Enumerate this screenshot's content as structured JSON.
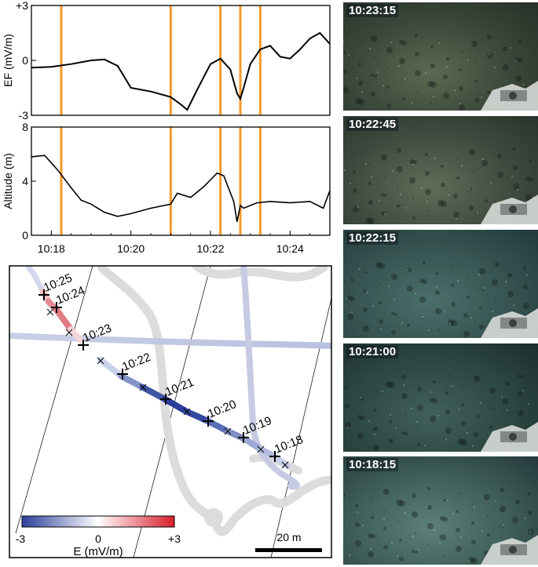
{
  "panels": {
    "ef": {
      "ylabel": "EF (mV/m)",
      "yticks": [
        "+3",
        "0",
        "-3"
      ]
    },
    "alt": {
      "ylabel": "Altitude (m)",
      "yticks": [
        "8",
        "4",
        "0"
      ]
    },
    "xticks": [
      "10:18",
      "10:20",
      "10:22",
      "10:24"
    ]
  },
  "chart_data": [
    {
      "type": "line",
      "title": "",
      "xlabel": "",
      "ylabel": "EF (mV/m)",
      "ylim": [
        -3,
        3
      ],
      "xlim": [
        "10:17:30",
        "10:25:00"
      ],
      "x": [
        "10:17:30",
        "10:18:00",
        "10:18:30",
        "10:19:00",
        "10:19:20",
        "10:19:40",
        "10:20:00",
        "10:20:30",
        "10:21:00",
        "10:21:15",
        "10:21:25",
        "10:21:40",
        "10:22:00",
        "10:22:15",
        "10:22:30",
        "10:22:40",
        "10:22:45",
        "10:22:50",
        "10:23:00",
        "10:23:15",
        "10:23:30",
        "10:23:45",
        "10:24:00",
        "10:24:15",
        "10:24:30",
        "10:24:45",
        "10:25:00"
      ],
      "y": [
        -0.4,
        -0.35,
        -0.2,
        0.0,
        0.05,
        -0.3,
        -1.5,
        -1.7,
        -2.0,
        -2.4,
        -2.7,
        -1.6,
        -0.2,
        0.1,
        -0.5,
        -1.8,
        -2.1,
        -1.5,
        -0.2,
        0.6,
        0.8,
        0.2,
        0.1,
        0.6,
        1.2,
        1.5,
        0.9
      ],
      "vertical_markers": [
        "10:18:15",
        "10:21:00",
        "10:22:15",
        "10:22:45",
        "10:23:15"
      ],
      "marker_color": "#f39a2b"
    },
    {
      "type": "line",
      "title": "",
      "xlabel": "",
      "ylabel": "Altitude (m)",
      "ylim": [
        0,
        8
      ],
      "xlim": [
        "10:17:30",
        "10:25:00"
      ],
      "x": [
        "10:17:30",
        "10:17:50",
        "10:18:10",
        "10:18:30",
        "10:18:45",
        "10:19:00",
        "10:19:20",
        "10:19:40",
        "10:20:00",
        "10:20:30",
        "10:21:00",
        "10:21:10",
        "10:21:30",
        "10:21:50",
        "10:22:10",
        "10:22:20",
        "10:22:35",
        "10:22:40",
        "10:22:45",
        "10:22:50",
        "10:23:10",
        "10:23:30",
        "10:24:00",
        "10:24:30",
        "10:24:50",
        "10:25:00"
      ],
      "y": [
        5.8,
        5.9,
        4.8,
        3.5,
        2.6,
        2.3,
        1.7,
        1.4,
        1.6,
        2.0,
        2.3,
        3.1,
        2.8,
        3.6,
        4.6,
        4.4,
        2.5,
        1.0,
        2.2,
        2.0,
        2.4,
        2.5,
        2.4,
        2.5,
        2.0,
        3.3
      ],
      "vertical_markers": [
        "10:18:15",
        "10:21:00",
        "10:22:15",
        "10:22:45",
        "10:23:15"
      ],
      "marker_color": "#f39a2b"
    }
  ],
  "map": {
    "time_labels": [
      "10:25",
      "10:24",
      "10:23",
      "10:22",
      "10:21",
      "10:20",
      "10:19",
      "10:18"
    ],
    "colorbar": {
      "min_label": "-3",
      "mid_label": "0",
      "max_label": "+3",
      "label": "E (mV/m)",
      "colors": [
        "#2b3f9a",
        "#ffffff",
        "#d81e2a"
      ]
    },
    "scale_label": "20 m"
  },
  "photos": [
    {
      "time": "10:23:15",
      "colors": [
        "#5c6a52",
        "#394639",
        "#263127"
      ]
    },
    {
      "time": "10:22:45",
      "colors": [
        "#5f6d58",
        "#3e4a3f",
        "#28332b"
      ]
    },
    {
      "time": "10:22:15",
      "colors": [
        "#4b6f6a",
        "#35524f",
        "#22383a"
      ]
    },
    {
      "time": "10:21:00",
      "colors": [
        "#41615a",
        "#2c4641",
        "#1b2e2d"
      ]
    },
    {
      "time": "10:18:15",
      "colors": [
        "#5c8078",
        "#3d5c56",
        "#24393a"
      ]
    }
  ]
}
